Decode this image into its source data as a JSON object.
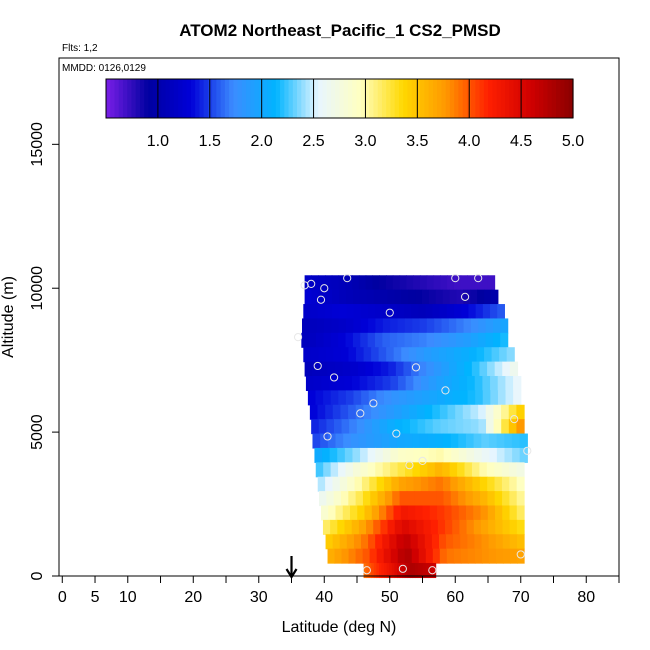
{
  "chart_data": {
    "type": "heatmap",
    "title": "ATOM2 Northeast_Pacific_1 CS2_PMSD",
    "flights_label": "Flts: 1,2",
    "mmdd_label": "MMDD: 0126,0129",
    "xlabel": "Latitude (deg N)",
    "ylabel": "Altitude (m)",
    "xlim": [
      -0.5,
      85
    ],
    "ylim": [
      0,
      18000
    ],
    "x_ticks": [
      0,
      5,
      10,
      20,
      30,
      40,
      50,
      60,
      70,
      80
    ],
    "x_minor_ticks": [
      15,
      25,
      35,
      45,
      55,
      65,
      75,
      85
    ],
    "y_ticks": [
      0,
      5000,
      10000,
      15000
    ],
    "colorbar": {
      "range": [
        0.5,
        5.0
      ],
      "ticks": [
        1.0,
        1.5,
        2.0,
        2.5,
        3.0,
        3.5,
        4.0,
        4.5,
        5.0
      ],
      "tick_labels": [
        "1.0",
        "1.5",
        "2.0",
        "2.5",
        "3.0",
        "3.5",
        "4.0",
        "4.5",
        "5.0"
      ],
      "colors": [
        "#7a1fe8",
        "#0000a0",
        "#0000d8",
        "#3c8cff",
        "#00b4ff",
        "#e8f6ff",
        "#ffffc0",
        "#ffd800",
        "#ff9800",
        "#ff2000",
        "#d00000",
        "#8a0000"
      ]
    },
    "arrow_marker_latitude": 35,
    "altitude_bands": [
      {
        "alt": 10200,
        "lat_min": 37.0,
        "lat_max": 66.0,
        "values": [
          1.2,
          1.1,
          0.9,
          0.8,
          0.7,
          0.7
        ]
      },
      {
        "alt": 9700,
        "lat_min": 37.0,
        "lat_max": 66.5,
        "values": [
          1.3,
          1.1,
          1.0,
          0.9,
          0.8,
          1.0
        ]
      },
      {
        "alt": 9200,
        "lat_min": 36.8,
        "lat_max": 67.5,
        "values": [
          1.2,
          1.3,
          1.2,
          1.1,
          1.3,
          1.6
        ]
      },
      {
        "alt": 8700,
        "lat_min": 36.6,
        "lat_max": 68.0,
        "values": [
          1.1,
          1.2,
          1.4,
          1.5,
          1.7,
          2.0
        ]
      },
      {
        "alt": 8200,
        "lat_min": 36.5,
        "lat_max": 68.0,
        "values": [
          1.1,
          1.3,
          1.6,
          1.7,
          1.9,
          2.2
        ]
      },
      {
        "alt": 7700,
        "lat_min": 36.8,
        "lat_max": 69.0,
        "values": [
          1.2,
          1.3,
          1.6,
          1.9,
          2.1,
          2.4
        ]
      },
      {
        "alt": 7200,
        "lat_min": 37.0,
        "lat_max": 69.5,
        "values": [
          1.1,
          1.2,
          1.4,
          1.8,
          2.2,
          2.7
        ]
      },
      {
        "alt": 6700,
        "lat_min": 37.2,
        "lat_max": 70.0,
        "values": [
          1.2,
          1.3,
          1.5,
          1.9,
          2.2,
          2.6
        ]
      },
      {
        "alt": 6200,
        "lat_min": 37.5,
        "lat_max": 70.0,
        "values": [
          1.3,
          1.5,
          1.8,
          2.0,
          2.2,
          2.6
        ]
      },
      {
        "alt": 5700,
        "lat_min": 37.8,
        "lat_max": 70.5,
        "values": [
          1.3,
          1.6,
          1.9,
          2.2,
          2.5,
          3.5
        ]
      },
      {
        "alt": 5200,
        "lat_min": 38.0,
        "lat_max": 70.5,
        "values": [
          1.4,
          1.7,
          2.1,
          2.3,
          2.4,
          3.9
        ]
      },
      {
        "alt": 4700,
        "lat_min": 38.2,
        "lat_max": 71.0,
        "values": [
          1.5,
          1.8,
          2.0,
          2.1,
          2.3,
          2.2
        ]
      },
      {
        "alt": 4200,
        "lat_min": 38.5,
        "lat_max": 71.0,
        "values": [
          2.0,
          2.4,
          2.9,
          3.0,
          2.6,
          2.3
        ]
      },
      {
        "alt": 3700,
        "lat_min": 38.7,
        "lat_max": 70.5,
        "values": [
          2.2,
          2.8,
          3.2,
          3.6,
          3.0,
          2.7
        ]
      },
      {
        "alt": 3200,
        "lat_min": 39.0,
        "lat_max": 70.5,
        "values": [
          2.4,
          3.0,
          3.7,
          3.9,
          3.4,
          2.9
        ]
      },
      {
        "alt": 2700,
        "lat_min": 39.2,
        "lat_max": 70.5,
        "values": [
          2.6,
          3.2,
          4.0,
          4.0,
          3.6,
          3.0
        ]
      },
      {
        "alt": 2200,
        "lat_min": 39.5,
        "lat_max": 70.5,
        "values": [
          2.8,
          3.4,
          4.3,
          4.1,
          3.8,
          3.1
        ]
      },
      {
        "alt": 1700,
        "lat_min": 39.8,
        "lat_max": 70.5,
        "values": [
          3.1,
          3.7,
          4.5,
          4.1,
          3.7,
          3.3
        ]
      },
      {
        "alt": 1200,
        "lat_min": 40.2,
        "lat_max": 70.5,
        "values": [
          3.4,
          3.9,
          4.7,
          4.0,
          3.8,
          3.5
        ]
      },
      {
        "alt": 700,
        "lat_min": 40.5,
        "lat_max": 70.5,
        "values": [
          3.6,
          4.0,
          4.8,
          3.9,
          3.8,
          3.7
        ]
      },
      {
        "alt": 200,
        "lat_min": 46.0,
        "lat_max": 57.0,
        "values": [
          3.9,
          4.3,
          4.8,
          4.6
        ]
      }
    ],
    "sample_points": [
      {
        "lat": 37.0,
        "alt": 10100
      },
      {
        "lat": 38.0,
        "alt": 10150
      },
      {
        "lat": 39.5,
        "alt": 9600
      },
      {
        "lat": 40.0,
        "alt": 10000
      },
      {
        "lat": 43.5,
        "alt": 10350
      },
      {
        "lat": 50.0,
        "alt": 9150
      },
      {
        "lat": 60.0,
        "alt": 10350
      },
      {
        "lat": 61.5,
        "alt": 9700
      },
      {
        "lat": 63.5,
        "alt": 10350
      },
      {
        "lat": 36.0,
        "alt": 8300
      },
      {
        "lat": 39.0,
        "alt": 7300
      },
      {
        "lat": 41.5,
        "alt": 6900
      },
      {
        "lat": 54.0,
        "alt": 7250
      },
      {
        "lat": 45.5,
        "alt": 5650
      },
      {
        "lat": 47.5,
        "alt": 6000
      },
      {
        "lat": 58.5,
        "alt": 6450
      },
      {
        "lat": 69.0,
        "alt": 5450
      },
      {
        "lat": 40.5,
        "alt": 4850
      },
      {
        "lat": 51.0,
        "alt": 4950
      },
      {
        "lat": 71.0,
        "alt": 4350
      },
      {
        "lat": 53.0,
        "alt": 3850
      },
      {
        "lat": 55.0,
        "alt": 4000
      },
      {
        "lat": 46.5,
        "alt": 200
      },
      {
        "lat": 52.0,
        "alt": 250
      },
      {
        "lat": 56.5,
        "alt": 200
      },
      {
        "lat": 70.0,
        "alt": 750
      }
    ]
  }
}
